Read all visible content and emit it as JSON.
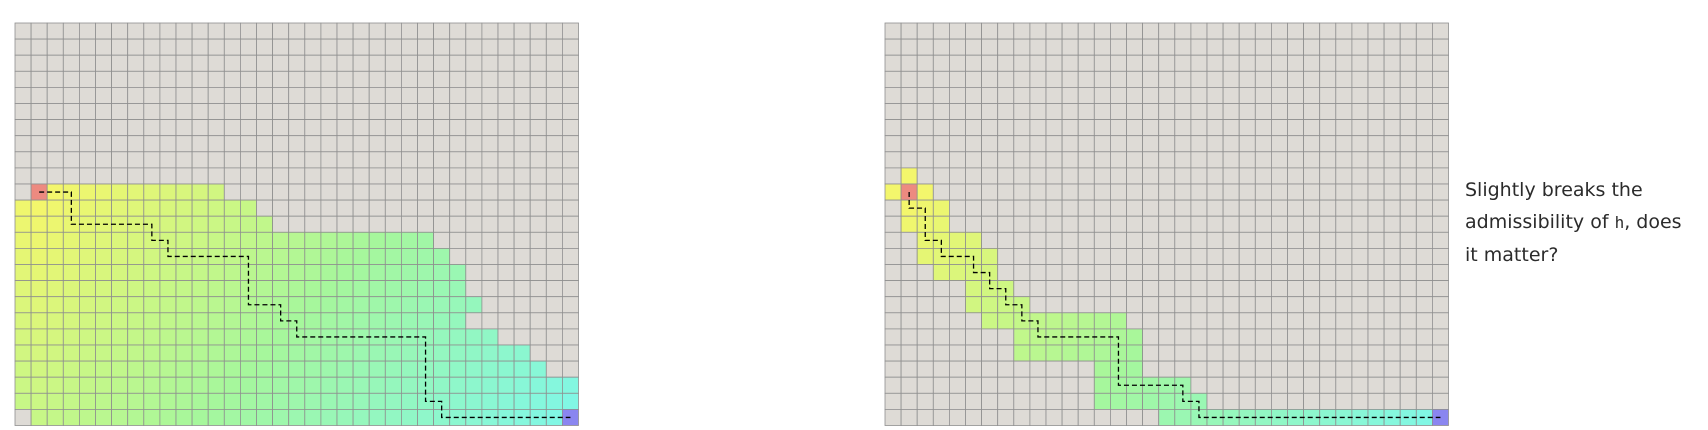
{
  "colors": {
    "unvisited": "#dedbd6",
    "grid_line": "#8f8f8f",
    "start": "#ed8a80",
    "goal": "#8a86f0",
    "path": "#000000",
    "gradient_near": "#f6f66a",
    "gradient_mid": "#a6f79c",
    "gradient_far": "#7ef7ea"
  },
  "grids": [
    {
      "name": "admissible-heuristic",
      "cols": 35,
      "rows": 25,
      "start": [
        1,
        10
      ],
      "goal": [
        34,
        24
      ],
      "explored_rows": [
        [
          10,
          1,
          12
        ],
        [
          11,
          0,
          14
        ],
        [
          12,
          0,
          15
        ],
        [
          13,
          0,
          25
        ],
        [
          14,
          0,
          26
        ],
        [
          15,
          0,
          27
        ],
        [
          16,
          0,
          27
        ],
        [
          17,
          0,
          28
        ],
        [
          18,
          0,
          27
        ],
        [
          19,
          0,
          29
        ],
        [
          20,
          0,
          31
        ],
        [
          21,
          0,
          32
        ],
        [
          22,
          0,
          34
        ],
        [
          23,
          0,
          34
        ],
        [
          24,
          1,
          34
        ]
      ],
      "path": [
        [
          1,
          10
        ],
        [
          3,
          10
        ],
        [
          3,
          12
        ],
        [
          8,
          12
        ],
        [
          8,
          13
        ],
        [
          9,
          13
        ],
        [
          9,
          14
        ],
        [
          14,
          14
        ],
        [
          14,
          17
        ],
        [
          16,
          17
        ],
        [
          16,
          18
        ],
        [
          17,
          18
        ],
        [
          17,
          19
        ],
        [
          25,
          19
        ],
        [
          25,
          23
        ],
        [
          26,
          23
        ],
        [
          26,
          24
        ],
        [
          34,
          24
        ]
      ]
    },
    {
      "name": "slightly-inadmissible-heuristic",
      "cols": 35,
      "rows": 25,
      "start": [
        1,
        10
      ],
      "goal": [
        34,
        24
      ],
      "explored_rows": [
        [
          9,
          1,
          1
        ],
        [
          10,
          0,
          2
        ],
        [
          11,
          1,
          3
        ],
        [
          12,
          1,
          3
        ],
        [
          13,
          2,
          5
        ],
        [
          14,
          2,
          6
        ],
        [
          15,
          3,
          6
        ],
        [
          16,
          5,
          7
        ],
        [
          17,
          5,
          8
        ],
        [
          18,
          6,
          14
        ],
        [
          19,
          8,
          15
        ],
        [
          20,
          8,
          15
        ],
        [
          21,
          13,
          15
        ],
        [
          22,
          13,
          18
        ],
        [
          23,
          13,
          19
        ],
        [
          24,
          17,
          33
        ]
      ],
      "path": [
        [
          1,
          10
        ],
        [
          1,
          11
        ],
        [
          2,
          11
        ],
        [
          2,
          13
        ],
        [
          3,
          13
        ],
        [
          3,
          14
        ],
        [
          5,
          14
        ],
        [
          5,
          15
        ],
        [
          6,
          15
        ],
        [
          6,
          16
        ],
        [
          7,
          16
        ],
        [
          7,
          17
        ],
        [
          8,
          17
        ],
        [
          8,
          18
        ],
        [
          9,
          18
        ],
        [
          9,
          19
        ],
        [
          14,
          19
        ],
        [
          14,
          22
        ],
        [
          18,
          22
        ],
        [
          18,
          23
        ],
        [
          19,
          23
        ],
        [
          19,
          24
        ],
        [
          34,
          24
        ]
      ]
    }
  ],
  "caption": {
    "line_before_code": "Slightly breaks the admissibility of ",
    "code": "h",
    "line_after_code": ", does it matter?"
  }
}
